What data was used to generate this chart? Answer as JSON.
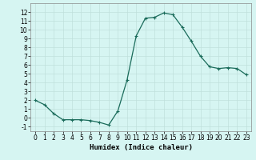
{
  "x": [
    0,
    1,
    2,
    3,
    4,
    5,
    6,
    7,
    8,
    9,
    10,
    11,
    12,
    13,
    14,
    15,
    16,
    17,
    18,
    19,
    20,
    21,
    22,
    23
  ],
  "y": [
    2,
    1.5,
    0.5,
    -0.2,
    -0.2,
    -0.2,
    -0.3,
    -0.5,
    -0.8,
    0.8,
    4.3,
    9.3,
    11.3,
    11.4,
    11.9,
    11.7,
    10.3,
    8.7,
    7.0,
    5.8,
    5.6,
    5.7,
    5.6,
    4.9
  ],
  "line_color": "#1a6b5a",
  "marker": "+",
  "marker_size": 3,
  "linewidth": 0.9,
  "xlabel": "Humidex (Indice chaleur)",
  "xlim": [
    -0.5,
    23.5
  ],
  "ylim": [
    -1.5,
    13
  ],
  "yticks": [
    -1,
    0,
    1,
    2,
    3,
    4,
    5,
    6,
    7,
    8,
    9,
    10,
    11,
    12
  ],
  "xticks": [
    0,
    1,
    2,
    3,
    4,
    5,
    6,
    7,
    8,
    9,
    10,
    11,
    12,
    13,
    14,
    15,
    16,
    17,
    18,
    19,
    20,
    21,
    22,
    23
  ],
  "background_color": "#d6f5f2",
  "grid_color": "#c0e0dc",
  "tick_fontsize": 5.5,
  "xlabel_fontsize": 6.5
}
